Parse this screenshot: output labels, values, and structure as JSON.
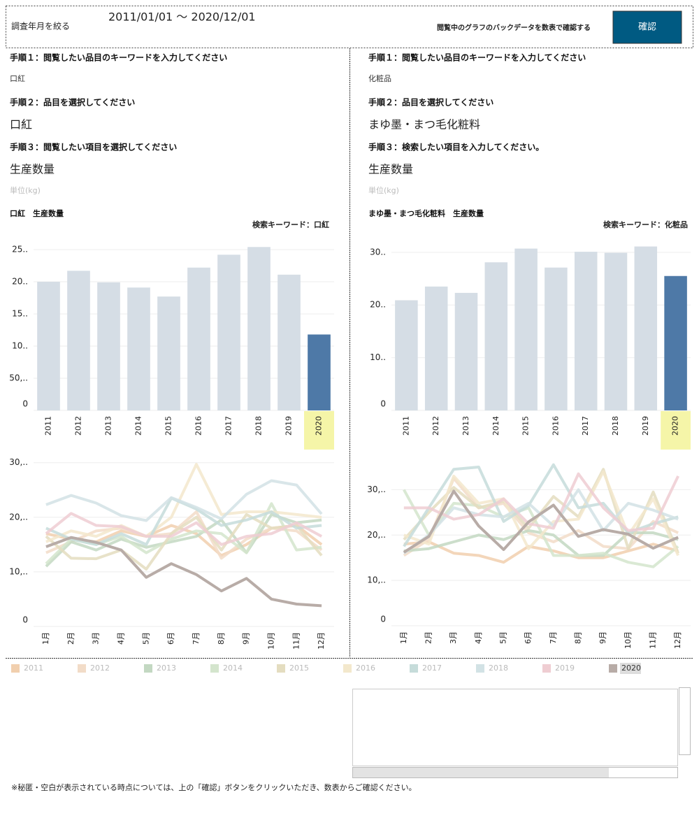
{
  "header": {
    "filter_label": "調査年月を絞る",
    "date_range": "2011/01/01 ～ 2020/12/01",
    "description": "閲覧中のグラフのバックデータを数表で確認する",
    "button": "確認"
  },
  "panels": [
    {
      "step1": "手順１：閲覧したい品目のキーワードを入力してください",
      "keyword": "口紅",
      "step2": "手順２：品目を選択してください",
      "item": "口紅",
      "step3": "手順３：閲覧したい項目を選択してください",
      "measure": "生産数量",
      "unit": "単位(kg)",
      "chart_title": "口紅　生産数量",
      "search_keyword": "検索キーワード：口紅"
    },
    {
      "step1": "手順１：閲覧したい品目のキーワードを入力してください",
      "keyword": "化粧品",
      "step2": "手順２：品目を選択してください",
      "item": "まゆ墨・まつ毛化粧料",
      "step3": "手順３：検索したい項目を入力してください。",
      "measure": "生産数量",
      "unit": "単位(kg)",
      "chart_title": "まゆ墨・まつ毛化粧料　生産数量",
      "search_keyword": "検索キーワード：化粧品"
    }
  ],
  "chart_data": [
    {
      "type": "bar",
      "categories": [
        "2011",
        "2012",
        "2013",
        "2014",
        "2015",
        "2016",
        "2017",
        "2018",
        "2019",
        "2020"
      ],
      "values": [
        200000,
        217000,
        199000,
        191000,
        177000,
        222000,
        242000,
        254000,
        211000,
        118000
      ],
      "color": "#d5dde5",
      "highlight": {
        "category": "2020",
        "bar_color": "#4e79a7",
        "label_background": "#f5f5a8"
      },
      "ylim": [
        0,
        263000
      ],
      "yticks": [
        0,
        {
          "value": 50000,
          "label": "50,.."
        },
        {
          "value": 100000,
          "label": "10.."
        },
        {
          "value": 150000,
          "label": "15.."
        },
        {
          "value": 200000,
          "label": "20.."
        },
        {
          "value": 250000,
          "label": "25.."
        }
      ],
      "grid": true
    },
    {
      "type": "line",
      "categories": [
        "1月",
        "2月",
        "3月",
        "4月",
        "5月",
        "6月",
        "7月",
        "8月",
        "9月",
        "10月",
        "11月",
        "12月"
      ],
      "series": [
        {
          "name": "2011",
          "color": "#f1cfae",
          "values": [
            17000,
            16000,
            15500,
            17500,
            16500,
            18500,
            17000,
            13000,
            15000,
            18000,
            18500,
            15000
          ]
        },
        {
          "name": "2012",
          "color": "#f2dcc8",
          "values": [
            13500,
            15500,
            17500,
            18000,
            16500,
            17000,
            21000,
            12500,
            16000,
            18000,
            17500,
            14000
          ]
        },
        {
          "name": "2013",
          "color": "#c3d8c2",
          "values": [
            11000,
            15500,
            14000,
            16000,
            14500,
            15500,
            16500,
            19500,
            13500,
            20500,
            19000,
            19500
          ]
        },
        {
          "name": "2014",
          "color": "#d4e5cd",
          "values": [
            11500,
            16000,
            15000,
            16500,
            13500,
            16000,
            17500,
            17000,
            13500,
            22500,
            14000,
            14500
          ]
        },
        {
          "name": "2015",
          "color": "#e4ddc0",
          "values": [
            16500,
            12500,
            12400,
            14000,
            10500,
            17000,
            20000,
            14000,
            20500,
            18000,
            18500,
            13000
          ]
        },
        {
          "name": "2016",
          "color": "#f3e8cc",
          "values": [
            15500,
            17500,
            16500,
            18500,
            16500,
            20000,
            29700,
            20500,
            21000,
            21000,
            20500,
            20000
          ]
        },
        {
          "name": "2017",
          "color": "#c6dcda",
          "values": [
            18000,
            16000,
            15000,
            17000,
            15000,
            23500,
            21500,
            18500,
            19500,
            21000,
            18000,
            18500
          ]
        },
        {
          "name": "2018",
          "color": "#d2e2e5",
          "values": [
            22300,
            24000,
            22600,
            20300,
            19400,
            23600,
            21800,
            19700,
            24200,
            26700,
            25900,
            20600
          ]
        },
        {
          "name": "2019",
          "color": "#efcdd2",
          "values": [
            17000,
            20700,
            18500,
            18300,
            16500,
            16500,
            19000,
            15000,
            16500,
            17000,
            19000,
            16500
          ]
        },
        {
          "name": "2020",
          "color": "#b8aca7",
          "values": [
            14600,
            16300,
            15400,
            14000,
            9000,
            11500,
            9500,
            6500,
            8800,
            5000,
            4100,
            3800
          ]
        }
      ],
      "ylim": [
        0,
        31500
      ],
      "yticks": [
        0,
        {
          "value": 10000,
          "label": "10,.."
        },
        {
          "value": 20000,
          "label": "20,.."
        },
        {
          "value": 30000,
          "label": "30,.."
        }
      ],
      "grid": true
    },
    {
      "type": "bar",
      "categories": [
        "2011",
        "2012",
        "2013",
        "2014",
        "2015",
        "2016",
        "2017",
        "2018",
        "2019",
        "2020"
      ],
      "values": [
        209000,
        235000,
        223000,
        281000,
        307000,
        271000,
        301000,
        299000,
        311000,
        255000
      ],
      "color": "#d5dde5",
      "highlight": {
        "category": "2020",
        "bar_color": "#4e79a7",
        "label_background": "#f5f5a8"
      },
      "ylim": [
        0,
        321000
      ],
      "yticks": [
        0,
        {
          "value": 100000,
          "label": "10.."
        },
        {
          "value": 200000,
          "label": "20.."
        },
        {
          "value": 300000,
          "label": "30.."
        }
      ],
      "grid": true
    },
    {
      "type": "line",
      "categories": [
        "1月",
        "2月",
        "3月",
        "4月",
        "5月",
        "6月",
        "7月",
        "8月",
        "9月",
        "10月",
        "11月",
        "12月"
      ],
      "series": [
        {
          "name": "2011",
          "color": "#f1cfae",
          "values": [
            18000,
            18500,
            16000,
            15500,
            14000,
            17500,
            16500,
            15000,
            15000,
            16500,
            18000,
            16500
          ]
        },
        {
          "name": "2012",
          "color": "#f2dcc8",
          "values": [
            15500,
            19000,
            32500,
            26000,
            27000,
            20500,
            18500,
            21000,
            17500,
            17000,
            23000,
            20500
          ]
        },
        {
          "name": "2013",
          "color": "#c3d8c2",
          "values": [
            16500,
            17000,
            18500,
            20000,
            19000,
            21000,
            20000,
            15500,
            15500,
            20500,
            20500,
            19000
          ]
        },
        {
          "name": "2014",
          "color": "#d4e5cd",
          "values": [
            30000,
            20000,
            27000,
            26500,
            24000,
            26000,
            15500,
            15500,
            16000,
            14000,
            13000,
            17500
          ]
        },
        {
          "name": "2015",
          "color": "#e4ddc0",
          "values": [
            19000,
            25000,
            30500,
            26000,
            27500,
            21500,
            28500,
            24000,
            34500,
            17000,
            29500,
            16000
          ]
        },
        {
          "name": "2016",
          "color": "#f3e8cc",
          "values": [
            20000,
            18000,
            33000,
            27000,
            28000,
            17000,
            23000,
            23500,
            34000,
            20000,
            28000,
            15500
          ]
        },
        {
          "name": "2017",
          "color": "#c6dcda",
          "values": [
            17500,
            26000,
            34500,
            35000,
            23000,
            26500,
            35500,
            26000,
            27000,
            20500,
            22500,
            24000
          ]
        },
        {
          "name": "2018",
          "color": "#d2e2e5",
          "values": [
            16000,
            20000,
            26000,
            24500,
            24000,
            27000,
            22000,
            30000,
            21000,
            27000,
            25500,
            23500
          ]
        },
        {
          "name": "2019",
          "color": "#efcdd2",
          "values": [
            26000,
            26000,
            23500,
            24500,
            28000,
            22500,
            21500,
            33500,
            26000,
            21000,
            21500,
            33000
          ]
        },
        {
          "name": "2020",
          "color": "#b8aca7",
          "values": [
            16200,
            19700,
            29700,
            22000,
            16800,
            22900,
            26600,
            19700,
            21200,
            20200,
            17100,
            19500
          ]
        }
      ],
      "ylim": [
        0,
        37000
      ],
      "yticks": [
        0,
        {
          "value": 10000,
          "label": "10,.."
        },
        {
          "value": 20000,
          "label": "20,.."
        },
        {
          "value": 30000,
          "label": "30,.."
        }
      ],
      "grid": true
    }
  ],
  "legend_highlight": "2020",
  "footnote": "※秘匿・空白が表示されている時点については、上の「確認」ボタンをクリックいただき、数表からご確認ください。"
}
